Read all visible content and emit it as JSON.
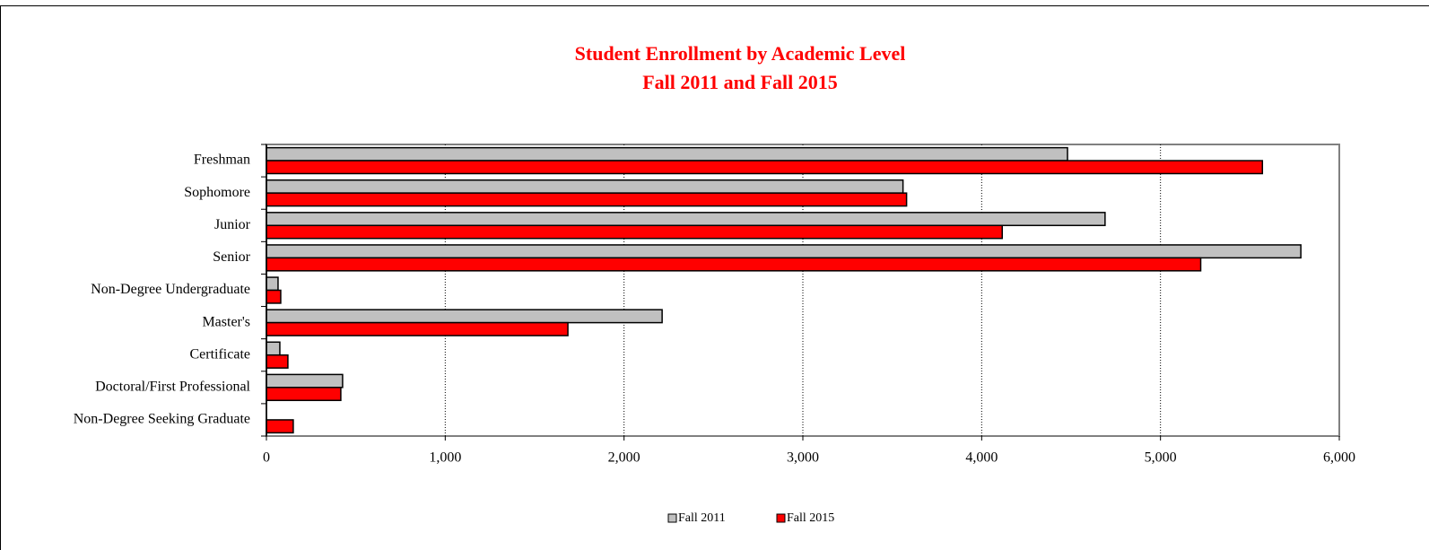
{
  "chart_data": {
    "type": "barh",
    "title": "Student Enrollment by Academic Level",
    "subtitle": "Fall 2011 and Fall 2015",
    "categories": [
      "Freshman",
      "Sophomore",
      "Junior",
      "Senior",
      "Non-Degree Undergraduate",
      "Master's",
      "Certificate",
      "Doctoral/First Professional",
      "Non-Degree Seeking Graduate"
    ],
    "series": [
      {
        "name": "Fall 2011",
        "color": "#c0c0c0",
        "values": [
          4480,
          3560,
          4690,
          5785,
          65,
          2213,
          75,
          426,
          null
        ]
      },
      {
        "name": "Fall 2015",
        "color": "#ff0000",
        "values": [
          5570,
          3580,
          4115,
          5225,
          80,
          1686,
          120,
          416,
          150
        ]
      }
    ],
    "xlim": [
      0,
      6000
    ],
    "xticks": [
      0,
      {
        "value": 1000,
        "label": "1,000"
      },
      {
        "value": 2000,
        "label": "2,000"
      },
      {
        "value": 3000,
        "label": "3,000"
      },
      {
        "value": 4000,
        "label": "4,000"
      },
      {
        "value": 5000,
        "label": "5,000"
      },
      {
        "value": 6000,
        "label": "6,000"
      }
    ],
    "grid": true,
    "legend": "bottom"
  }
}
